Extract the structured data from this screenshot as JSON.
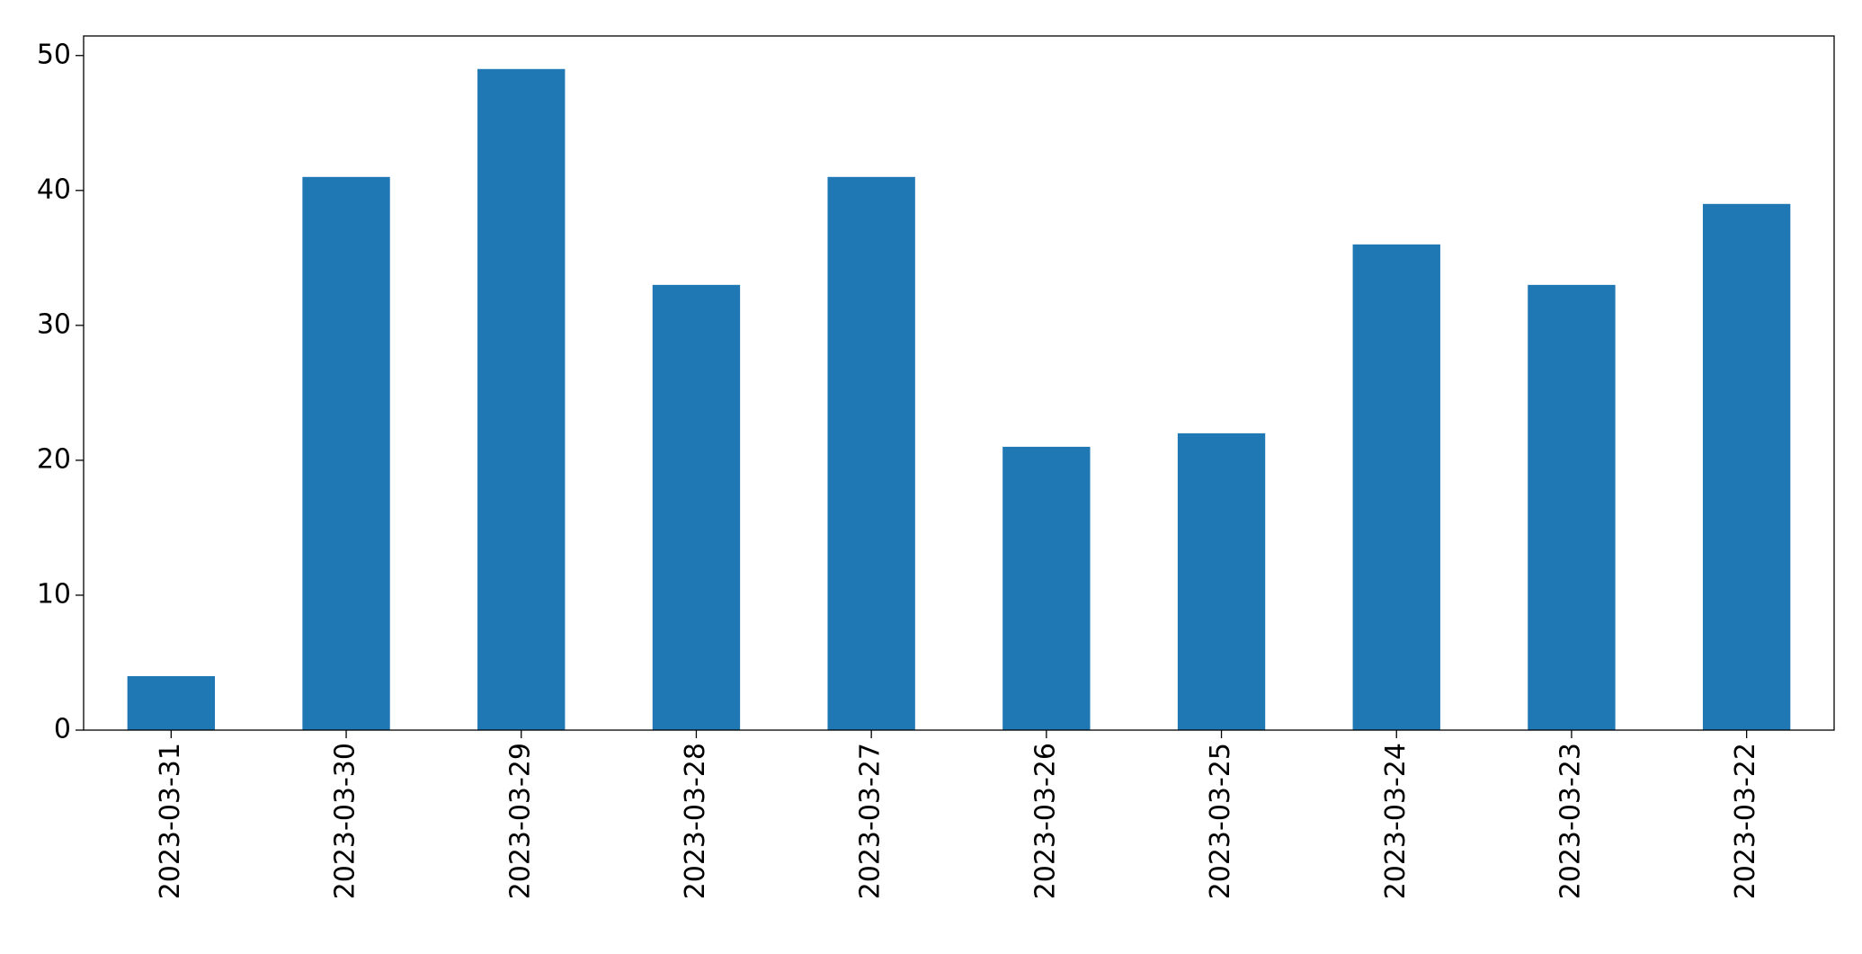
{
  "chart_data": {
    "type": "bar",
    "categories": [
      "2023-03-31",
      "2023-03-30",
      "2023-03-29",
      "2023-03-28",
      "2023-03-27",
      "2023-03-26",
      "2023-03-25",
      "2023-03-24",
      "2023-03-23",
      "2023-03-22"
    ],
    "values": [
      4,
      41,
      49,
      33,
      41,
      21,
      22,
      36,
      33,
      39
    ],
    "color": "#1f77b4",
    "ylim": [
      0,
      51.45
    ],
    "yticks": [
      0,
      10,
      20,
      30,
      40,
      50
    ],
    "grid": false
  }
}
